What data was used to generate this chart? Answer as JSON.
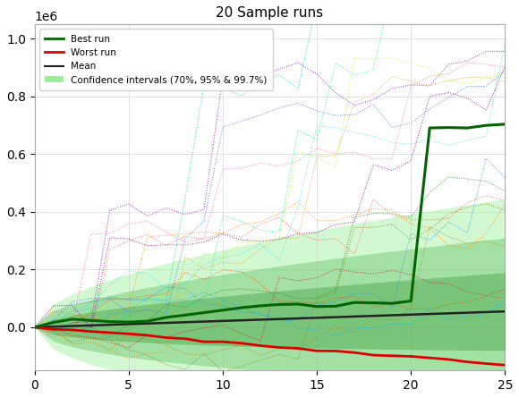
{
  "title": "20 Sample runs",
  "n_sessions": 25,
  "n_runs": 20,
  "seed": 7,
  "best_color": "#006400",
  "worst_color": "#dd0000",
  "mean_color": "#222222",
  "sample_colors": [
    "#ff8c00",
    "#1e90ff",
    "#228b22",
    "#9400d3",
    "#ff69b4",
    "#00ced1",
    "#ff4500",
    "#8b8000",
    "#8b008b",
    "#b8860b",
    "#00fa9a",
    "#dc143c",
    "#4169e1",
    "#7cfc00",
    "#ff1493",
    "#00bfff",
    "#adff2f",
    "#ff6347",
    "#40e0d0",
    "#daa520"
  ],
  "ci_color_light": "#90ee90",
  "ci_color_mid": "#5dbe5d",
  "ci_color_dark": "#3a9e3a",
  "ylim_min": -150000,
  "ylim_max": 1050000,
  "xlim_min": 0,
  "xlim_max": 25,
  "yticks": [
    0.0,
    200000,
    400000,
    600000,
    800000,
    1000000
  ],
  "xticks": [
    0,
    5,
    10,
    15,
    20,
    25
  ]
}
